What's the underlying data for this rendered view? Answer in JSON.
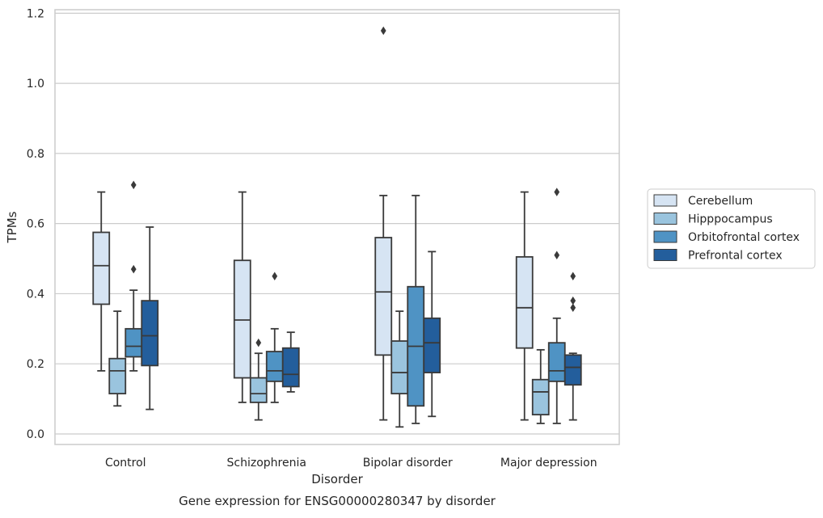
{
  "colors": {
    "Cerebellum": "#d6e4f3",
    "Hipppocampus": "#9ac4de",
    "Orbitofrontal cortex": "#4f93c4",
    "Prefrontal cortex": "#235e9c",
    "box_edge": "#3a3a3a",
    "grid": "#cccccc",
    "frame": "#cccccc"
  },
  "chart_data": {
    "type": "box",
    "title": "",
    "caption": "Gene expression for ENSG00000280347 by disorder",
    "xlabel": "Disorder",
    "ylabel": "TPMs",
    "ylim": [
      -0.03,
      1.21
    ],
    "yticks": [
      0.0,
      0.2,
      0.4,
      0.6,
      0.8,
      1.0,
      1.2
    ],
    "ytick_labels": [
      "0.0",
      "0.2",
      "0.4",
      "0.6",
      "0.8",
      "1.0",
      "1.2"
    ],
    "grid": "horizontal",
    "legend_position": "right",
    "categories": [
      "Control",
      "Schizophrenia",
      "Bipolar disorder",
      "Major depression"
    ],
    "series": [
      {
        "name": "Cerebellum",
        "boxes": [
          {
            "whisker_low": 0.18,
            "q1": 0.37,
            "median": 0.48,
            "q3": 0.575,
            "whisker_high": 0.69,
            "outliers": []
          },
          {
            "whisker_low": 0.09,
            "q1": 0.16,
            "median": 0.325,
            "q3": 0.495,
            "whisker_high": 0.69,
            "outliers": []
          },
          {
            "whisker_low": 0.04,
            "q1": 0.225,
            "median": 0.405,
            "q3": 0.56,
            "whisker_high": 0.68,
            "outliers": [
              1.15
            ]
          },
          {
            "whisker_low": 0.04,
            "q1": 0.245,
            "median": 0.36,
            "q3": 0.505,
            "whisker_high": 0.69,
            "outliers": []
          }
        ]
      },
      {
        "name": "Hipppocampus",
        "boxes": [
          {
            "whisker_low": 0.08,
            "q1": 0.115,
            "median": 0.18,
            "q3": 0.215,
            "whisker_high": 0.35,
            "outliers": []
          },
          {
            "whisker_low": 0.04,
            "q1": 0.09,
            "median": 0.115,
            "q3": 0.16,
            "whisker_high": 0.23,
            "outliers": [
              0.26
            ]
          },
          {
            "whisker_low": 0.02,
            "q1": 0.115,
            "median": 0.175,
            "q3": 0.265,
            "whisker_high": 0.35,
            "outliers": []
          },
          {
            "whisker_low": 0.03,
            "q1": 0.055,
            "median": 0.12,
            "q3": 0.155,
            "whisker_high": 0.24,
            "outliers": []
          }
        ]
      },
      {
        "name": "Orbitofrontal cortex",
        "boxes": [
          {
            "whisker_low": 0.18,
            "q1": 0.22,
            "median": 0.25,
            "q3": 0.3,
            "whisker_high": 0.41,
            "outliers": [
              0.47,
              0.71
            ]
          },
          {
            "whisker_low": 0.09,
            "q1": 0.15,
            "median": 0.18,
            "q3": 0.235,
            "whisker_high": 0.3,
            "outliers": [
              0.45
            ]
          },
          {
            "whisker_low": 0.03,
            "q1": 0.08,
            "median": 0.25,
            "q3": 0.42,
            "whisker_high": 0.68,
            "outliers": []
          },
          {
            "whisker_low": 0.03,
            "q1": 0.15,
            "median": 0.18,
            "q3": 0.26,
            "whisker_high": 0.33,
            "outliers": [
              0.51,
              0.69
            ]
          }
        ]
      },
      {
        "name": "Prefrontal cortex",
        "boxes": [
          {
            "whisker_low": 0.07,
            "q1": 0.195,
            "median": 0.28,
            "q3": 0.38,
            "whisker_high": 0.59,
            "outliers": []
          },
          {
            "whisker_low": 0.12,
            "q1": 0.135,
            "median": 0.17,
            "q3": 0.245,
            "whisker_high": 0.29,
            "outliers": []
          },
          {
            "whisker_low": 0.05,
            "q1": 0.175,
            "median": 0.26,
            "q3": 0.33,
            "whisker_high": 0.52,
            "outliers": []
          },
          {
            "whisker_low": 0.04,
            "q1": 0.14,
            "median": 0.19,
            "q3": 0.225,
            "whisker_high": 0.23,
            "outliers": [
              0.36,
              0.38,
              0.45
            ]
          }
        ]
      }
    ]
  }
}
